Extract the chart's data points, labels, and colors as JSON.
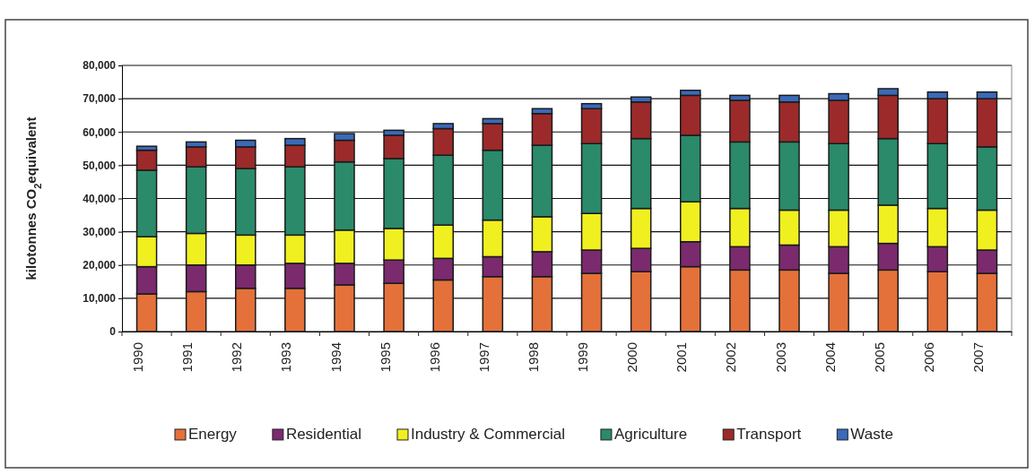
{
  "chart_data": {
    "type": "bar",
    "stacked": true,
    "ylabel": "kilotonnes CO$_{2}$equivalent",
    "categories": [
      "1990",
      "1991",
      "1992",
      "1993",
      "1994",
      "1995",
      "1996",
      "1997",
      "1998",
      "1999",
      "2000",
      "2001",
      "2002",
      "2003",
      "2004",
      "2005",
      "2006",
      "2007"
    ],
    "series": [
      {
        "name": "Energy",
        "color": "#e4713a",
        "values": [
          11300,
          12000,
          13000,
          13000,
          14000,
          14500,
          15500,
          16500,
          16500,
          17500,
          18000,
          19500,
          18500,
          18500,
          17500,
          18500,
          18000,
          17500
        ]
      },
      {
        "name": "Residential",
        "color": "#7b2a6e",
        "values": [
          8200,
          8000,
          7000,
          7500,
          6500,
          7000,
          6500,
          6000,
          7500,
          7000,
          7000,
          7500,
          7000,
          7500,
          8000,
          8000,
          7500,
          7000
        ]
      },
      {
        "name": "Industry & Commercial",
        "color": "#f0f020",
        "values": [
          9000,
          9500,
          9000,
          8500,
          10000,
          9500,
          10000,
          11000,
          10500,
          11000,
          12000,
          12000,
          11500,
          10500,
          11000,
          11500,
          11500,
          12000
        ]
      },
      {
        "name": "Agriculture",
        "color": "#2a8a6a",
        "values": [
          20000,
          20000,
          20000,
          20500,
          20500,
          21000,
          21000,
          21000,
          21500,
          21000,
          21000,
          20000,
          20000,
          20500,
          20000,
          20000,
          19500,
          19000
        ]
      },
      {
        "name": "Transport",
        "color": "#9c2a2a",
        "values": [
          6000,
          6000,
          6500,
          6500,
          6500,
          7000,
          8000,
          8000,
          9500,
          10500,
          11000,
          12000,
          12500,
          12000,
          13000,
          13000,
          13500,
          14500
        ]
      },
      {
        "name": "Waste",
        "color": "#3a6ab8",
        "values": [
          1200,
          1500,
          2000,
          2000,
          2000,
          1500,
          1500,
          1500,
          1500,
          1500,
          1500,
          1500,
          1500,
          2000,
          2000,
          2000,
          2000,
          2000
        ]
      }
    ],
    "ylim": [
      0,
      80000
    ],
    "yticks": [
      {
        "value": 0,
        "label": "0"
      },
      {
        "value": 10000,
        "label": "10,000"
      },
      {
        "value": 20000,
        "label": "20,000"
      },
      {
        "value": 30000,
        "label": "30,000"
      },
      {
        "value": 40000,
        "label": "40,000"
      },
      {
        "value": 50000,
        "label": "50,000"
      },
      {
        "value": 60000,
        "label": "60,000"
      },
      {
        "value": 70000,
        "label": "70,000"
      },
      {
        "value": 80000,
        "label": "80,000"
      }
    ],
    "grid": "y",
    "legend": "bottom"
  }
}
